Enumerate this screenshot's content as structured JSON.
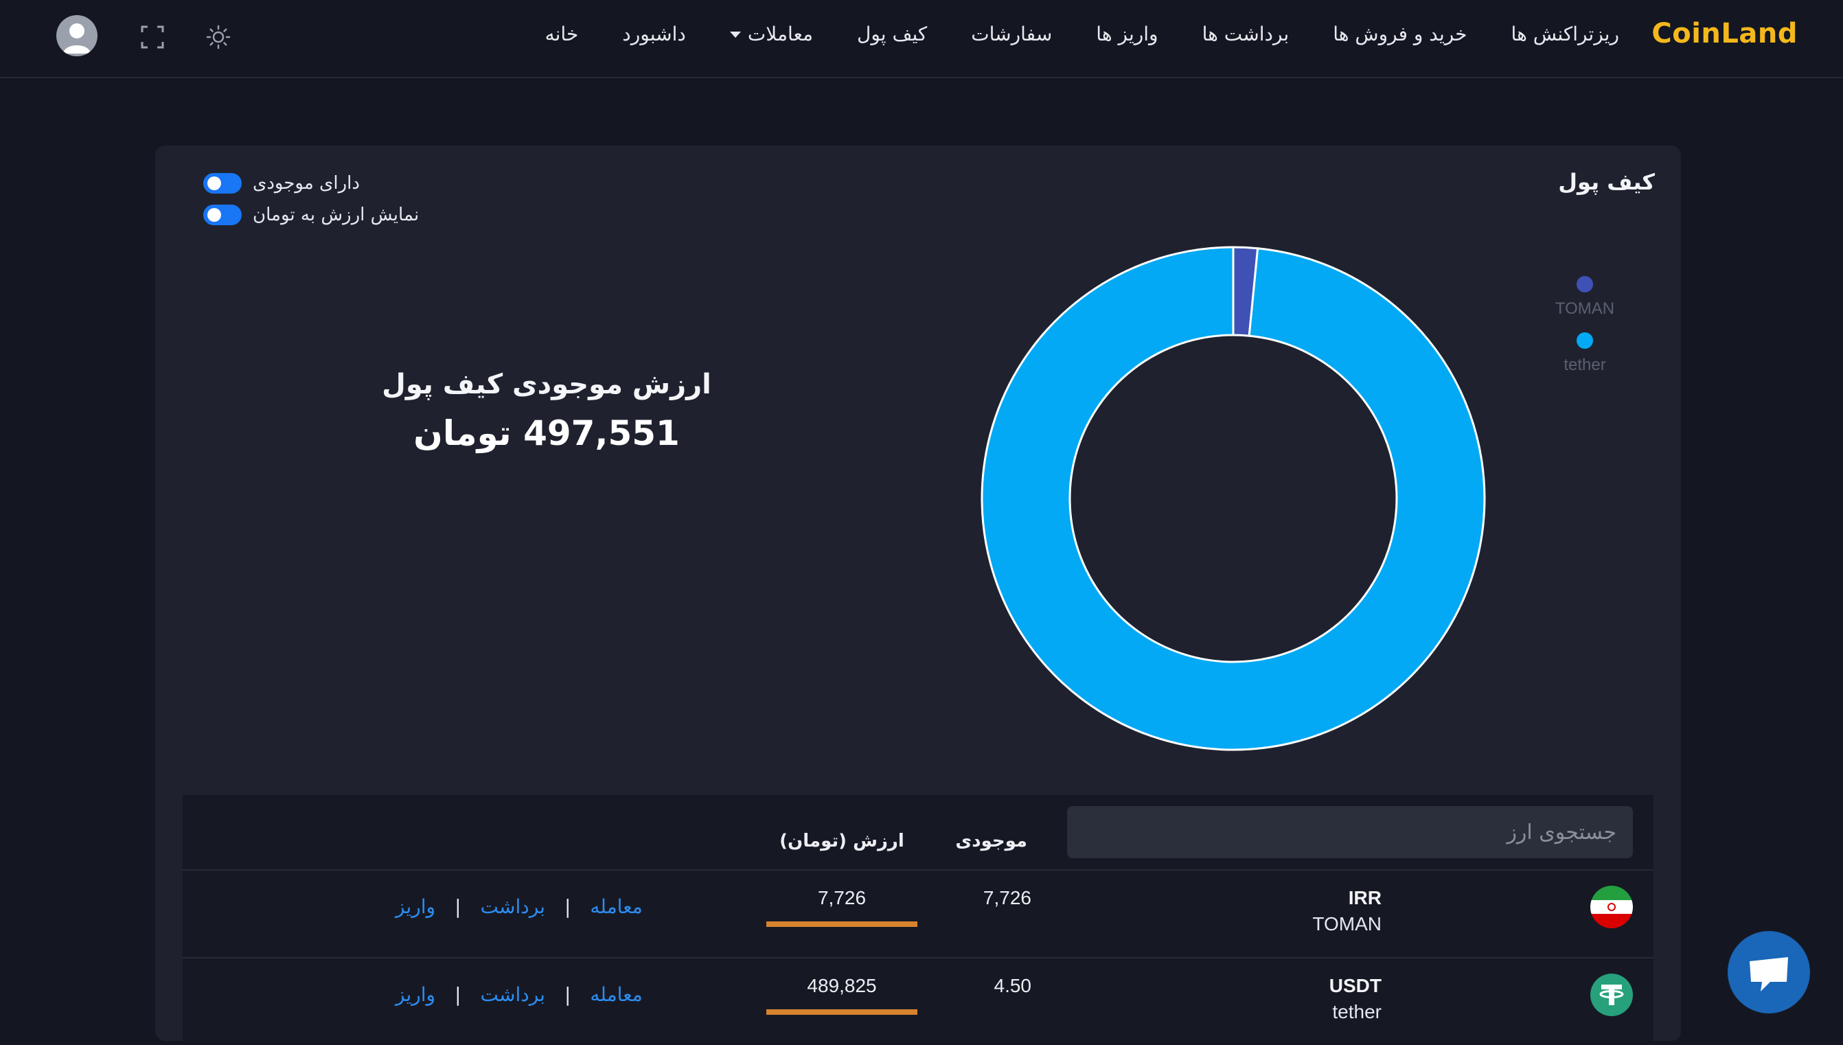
{
  "app": {
    "brand": "CoinLand",
    "nav": [
      {
        "label": "خانه",
        "dropdown": false
      },
      {
        "label": "داشبورد",
        "dropdown": false
      },
      {
        "label": "معاملات",
        "dropdown": true
      },
      {
        "label": "کیف پول",
        "dropdown": false
      },
      {
        "label": "سفارشات",
        "dropdown": false
      },
      {
        "label": "واریز ها",
        "dropdown": false
      },
      {
        "label": "برداشت ها",
        "dropdown": false
      },
      {
        "label": "خرید و فروش ها",
        "dropdown": false
      },
      {
        "label": "ریزتراکنش ها",
        "dropdown": false
      }
    ],
    "icons": {
      "theme": "sun-icon",
      "fullscreen": "fullscreen-icon",
      "profile": "user-avatar-icon",
      "chat": "chat-icon"
    }
  },
  "wallet": {
    "title": "کیف پول",
    "toggles": [
      {
        "label": "دارای موجودی",
        "on": true
      },
      {
        "label": "نمایش ارزش به تومان",
        "on": true
      }
    ],
    "total_label": "ارزش موجودی کیف پول",
    "total_value": "497,551 تومان"
  },
  "chart_data": {
    "type": "pie",
    "donut": true,
    "categories": [
      "TOMAN",
      "tether"
    ],
    "values": [
      7726,
      489825
    ],
    "colors": [
      "#3f51b5",
      "#03a9f4"
    ],
    "legend_position": "right"
  },
  "table": {
    "search_placeholder": "جستجوی ارز",
    "headers": {
      "balance": "موجودی",
      "value": "ارزش (تومان)"
    },
    "rows": [
      {
        "symbol": "IRR",
        "name": "TOMAN",
        "icon": "iran-flag-icon",
        "balance": "7,726",
        "value": "7,726",
        "value_fill": 1.0,
        "actions": [
          "معامله",
          "برداشت",
          "واریز"
        ]
      },
      {
        "symbol": "USDT",
        "name": "tether",
        "icon": "tether-icon",
        "balance": "4.50",
        "value": "489,825",
        "value_fill": 1.0,
        "actions": [
          "معامله",
          "برداشت",
          "واریز"
        ]
      }
    ]
  },
  "colors": {
    "brand": "#f5b81c",
    "link": "#2d8cf0",
    "toggle": "#1976f5",
    "value_bar": "#d8832e",
    "chat": "#1a66b8"
  }
}
